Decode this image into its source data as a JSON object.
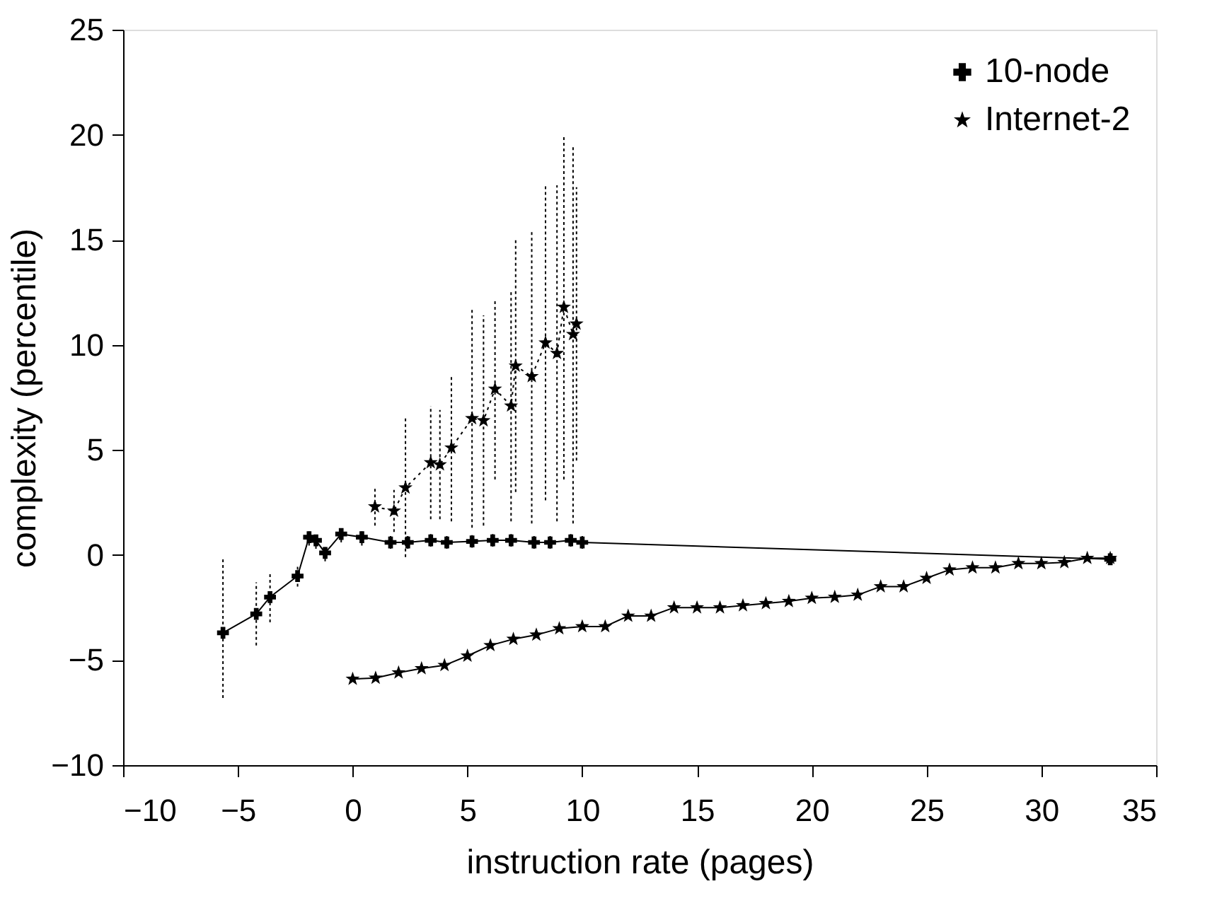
{
  "chart_data": {
    "type": "line",
    "xlabel": "instruction rate (pages)",
    "ylabel": "complexity (percentile)",
    "xlim": [
      -10,
      35
    ],
    "xticks": [
      -10,
      -5,
      0,
      5,
      10,
      15,
      20,
      25,
      30,
      35
    ],
    "ylim": [
      -10,
      25
    ],
    "yticks": [
      -10,
      -5,
      0,
      5,
      10,
      15,
      20,
      25
    ],
    "grid": false,
    "legend": "top right",
    "series": [
      {
        "name": "10-node",
        "color": "#000000",
        "marker": "cross",
        "line_style": "solid",
        "x": [
          -5.65,
          -4.2,
          -3.6,
          -2.4,
          -1.9,
          -1.6,
          -1.2,
          -0.5,
          0.4,
          1.65,
          2.4,
          3.4,
          4.1,
          5.2,
          6.1,
          6.9,
          7.9,
          8.6,
          9.5,
          10,
          33
        ],
        "values": [
          -3.7,
          -2.8,
          -2.0,
          -1.0,
          0.85,
          0.7,
          0.1,
          1.0,
          0.85,
          0.6,
          0.6,
          0.7,
          0.6,
          0.65,
          0.7,
          0.7,
          0.6,
          0.6,
          0.7,
          0.6,
          -0.2
        ],
        "errors": [
          [
            -6.8,
            -0.1
          ],
          1.5,
          1.2,
          0.5,
          0.4,
          0.4,
          0.4,
          0.4,
          0.4,
          0.3,
          0.3,
          0.3,
          0.3,
          0.3,
          0.3,
          0.3,
          0.3,
          0.3,
          0.3,
          0.3,
          null
        ]
      },
      {
        "name": "Internet-2",
        "color": "#000000",
        "marker": "star",
        "line_style": "dotted",
        "x": [
          0.97,
          1.8,
          2.3,
          3.4,
          3.8,
          4.3,
          5.2,
          5.7,
          6.2,
          6.9,
          7.1,
          7.8,
          8.4,
          8.9,
          9.2,
          9.6,
          9.75
        ],
        "values": [
          2.3,
          2.1,
          3.2,
          4.4,
          4.3,
          5.1,
          6.5,
          6.4,
          7.9,
          7.1,
          9.0,
          8.5,
          10.1,
          9.6,
          11.8,
          10.5,
          11.0
        ],
        "errors": [
          0.9,
          1.0,
          3.3,
          2.7,
          2.6,
          3.5,
          5.2,
          5.0,
          4.3,
          5.5,
          6.0,
          7.0,
          7.5,
          8.0,
          8.2,
          9.0,
          6.5
        ]
      },
      {
        "color": "#000000",
        "marker": "star",
        "line_style": "solid",
        "x": [
          0,
          1,
          2,
          3,
          4,
          5,
          6,
          7,
          8,
          9,
          10,
          11,
          12,
          13,
          14,
          15,
          16,
          17,
          18,
          19,
          20,
          21,
          22,
          23,
          24,
          25,
          26,
          27,
          28,
          29,
          30,
          31,
          32,
          33
        ],
        "values": [
          -5.9,
          -5.85,
          -5.6,
          -5.4,
          -5.25,
          -4.8,
          -4.3,
          -4.0,
          -3.8,
          -3.5,
          -3.4,
          -3.4,
          -2.9,
          -2.9,
          -2.5,
          -2.5,
          -2.5,
          -2.4,
          -2.3,
          -2.2,
          -2.05,
          -2.0,
          -1.9,
          -1.5,
          -1.5,
          -1.1,
          -0.7,
          -0.6,
          -0.6,
          -0.4,
          -0.4,
          -0.35,
          -0.15,
          -0.15
        ]
      }
    ]
  }
}
